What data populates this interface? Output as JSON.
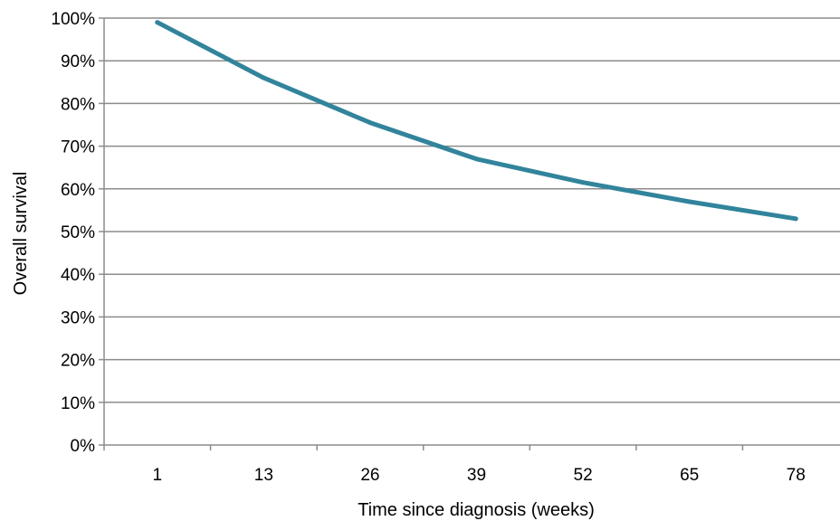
{
  "chart_data": {
    "type": "line",
    "title": "",
    "xlabel": "Time since diagnosis (weeks)",
    "ylabel": "Overall survival",
    "categories": [
      "1",
      "13",
      "26",
      "39",
      "52",
      "65",
      "78"
    ],
    "yticks": [
      "0%",
      "10%",
      "20%",
      "30%",
      "40%",
      "50%",
      "60%",
      "70%",
      "80%",
      "90%",
      "100%"
    ],
    "ylim": [
      0,
      100
    ],
    "grid": true,
    "legend": "none",
    "series": [
      {
        "color": "#31849b",
        "values": [
          99,
          86,
          75.5,
          67,
          61.5,
          57,
          53
        ]
      }
    ]
  }
}
